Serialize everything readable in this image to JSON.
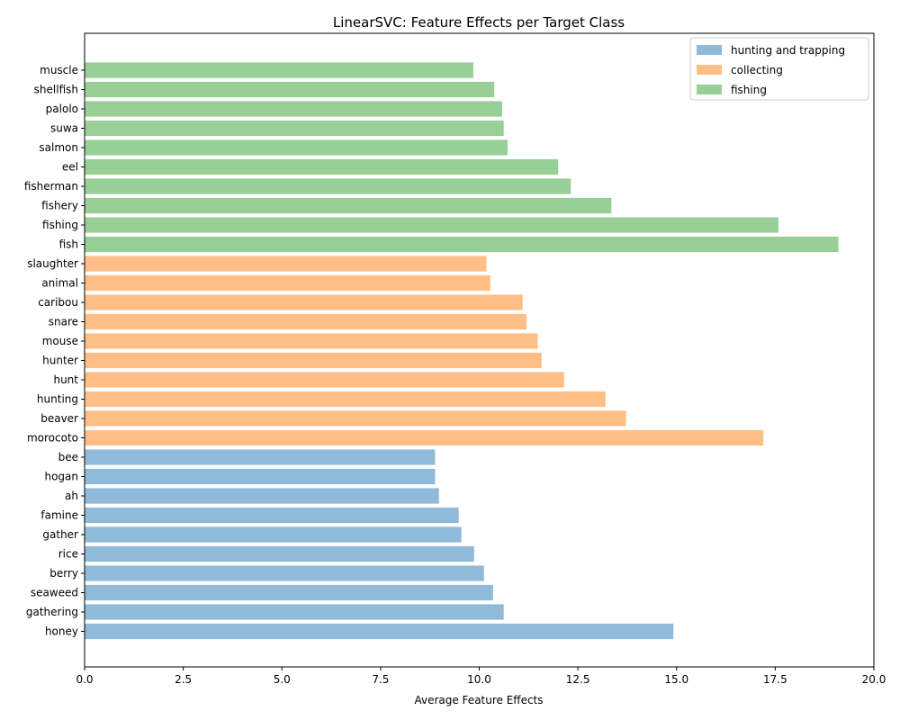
{
  "chart_data": {
    "type": "bar",
    "orientation": "horizontal",
    "title": "LinearSVC: Feature Effects per Target Class",
    "xlabel": "Average Feature Effects",
    "ylabel": "",
    "xlim": [
      0,
      20
    ],
    "xticks": [
      "0.0",
      "2.5",
      "5.0",
      "7.5",
      "10.0",
      "12.5",
      "15.0",
      "17.5",
      "20.0"
    ],
    "xtick_values": [
      0,
      2.5,
      5,
      7.5,
      10,
      12.5,
      15,
      17.5,
      20
    ],
    "grid": false,
    "legend_position": "top-right",
    "series": [
      {
        "name": "hunting and trapping",
        "color": "#8fbad9",
        "features": [
          "honey",
          "gathering",
          "seaweed",
          "berry",
          "rice",
          "gather",
          "famine",
          "ah",
          "hogan",
          "bee"
        ],
        "values": [
          14.92,
          10.62,
          10.35,
          10.12,
          9.87,
          9.55,
          9.48,
          8.98,
          8.88,
          8.88
        ]
      },
      {
        "name": "collecting",
        "color": "#ffbe86",
        "features": [
          "morocoto",
          "beaver",
          "hunting",
          "hunt",
          "hunter",
          "mouse",
          "snare",
          "caribou",
          "animal",
          "slaughter"
        ],
        "values": [
          17.2,
          13.72,
          13.2,
          12.15,
          11.58,
          11.48,
          11.2,
          11.1,
          10.28,
          10.18
        ]
      },
      {
        "name": "fishing",
        "color": "#97cf97",
        "features": [
          "fish",
          "fishing",
          "fishery",
          "fisherman",
          "eel",
          "salmon",
          "suwa",
          "palolo",
          "shellfish",
          "muscle"
        ],
        "values": [
          19.1,
          17.58,
          13.35,
          12.32,
          12.0,
          10.72,
          10.62,
          10.58,
          10.38,
          9.85
        ]
      }
    ]
  }
}
